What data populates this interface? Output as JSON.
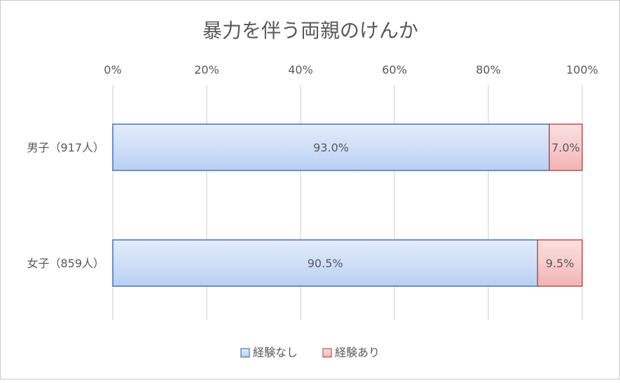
{
  "chart_data": {
    "type": "bar",
    "orientation": "horizontal",
    "stacked": "percent",
    "title": "暴力を伴う両親のけんか",
    "categories": [
      "男子（917人）",
      "女子（859人）"
    ],
    "series": [
      {
        "name": "経験なし",
        "values": [
          93.0,
          90.5
        ],
        "labels": [
          "93.0%",
          "90.5%"
        ],
        "color": "#c6d9f5",
        "border": "#4472c4"
      },
      {
        "name": "経験あり",
        "values": [
          7.0,
          9.5
        ],
        "labels": [
          "7.0%",
          "9.5%"
        ],
        "color": "#f7c5c5",
        "border": "#c0504d"
      }
    ],
    "xaxis": {
      "position": "top",
      "ticks": [
        "0%",
        "20%",
        "40%",
        "60%",
        "80%",
        "100%"
      ],
      "range": [
        0,
        100
      ]
    },
    "grid": true,
    "legend": "bottom"
  }
}
